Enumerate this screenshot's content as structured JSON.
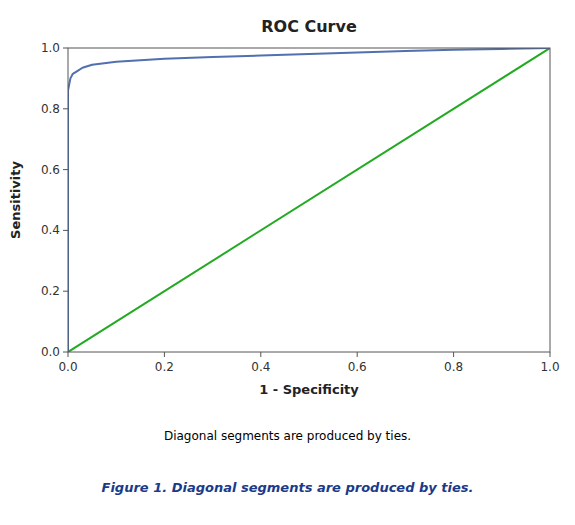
{
  "chart_data": {
    "type": "line",
    "title": "ROC Curve",
    "x_label": "1 - Specificity",
    "y_label": "Sensitivity",
    "xlim": [
      0.0,
      1.0
    ],
    "ylim": [
      0.0,
      1.0
    ],
    "xticks": [
      {
        "value": 0.0,
        "label": "0.0"
      },
      0.2,
      0.4,
      0.6,
      0.8,
      {
        "value": 1.0,
        "label": "1.0"
      }
    ],
    "yticks": [
      {
        "value": 0.0,
        "label": "0.0"
      },
      0.2,
      0.4,
      0.6,
      0.8,
      {
        "value": 1.0,
        "label": "1.0"
      }
    ],
    "grid": false,
    "series": [
      {
        "color": "#22aa22",
        "x": [
          0,
          1
        ],
        "values": [
          0,
          1
        ]
      },
      {
        "color": "#5070b0",
        "x": [
          0.0,
          0.0,
          0.005,
          0.01,
          0.02,
          0.03,
          0.05,
          0.1,
          0.2,
          0.3,
          0.4,
          0.5,
          0.6,
          0.7,
          0.8,
          0.9,
          1.0
        ],
        "values": [
          0.0,
          0.86,
          0.9,
          0.915,
          0.925,
          0.935,
          0.945,
          0.955,
          0.965,
          0.97,
          0.975,
          0.98,
          0.985,
          0.99,
          0.994,
          0.997,
          1.0
        ]
      }
    ],
    "annotations": [
      {
        "text": "Diagonal segments are produced by ties.",
        "color": "#000000"
      },
      {
        "text": "Figure 1. Diagonal segments are produced by ties.",
        "color": "#1a3a8a"
      }
    ]
  }
}
